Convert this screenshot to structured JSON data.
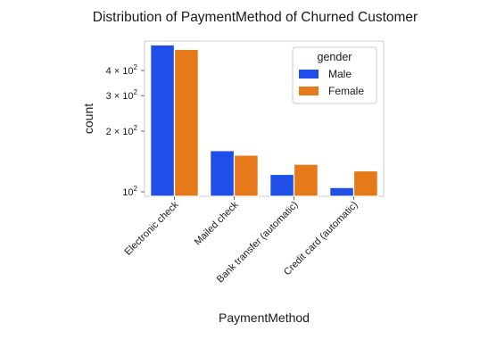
{
  "chart_data": {
    "type": "bar",
    "title": "Distribution of PaymentMethod of Churned Customer",
    "xlabel": "PaymentMethod",
    "ylabel": "count",
    "yscale": "log",
    "ylim": [
      95,
      560
    ],
    "yticks": [
      {
        "value": 100,
        "base": "10",
        "exp": "2"
      },
      {
        "value": 200,
        "base": "2 × 10",
        "exp": "2"
      },
      {
        "value": 300,
        "base": "3 × 10",
        "exp": "2"
      },
      {
        "value": 400,
        "base": "4 × 10",
        "exp": "2"
      }
    ],
    "categories": [
      "Electronic check",
      "Mailed check",
      "Bank transfer (automatic)",
      "Credit card (automatic)"
    ],
    "series": [
      {
        "name": "Male",
        "color": "#1f4fe8",
        "values": [
          536,
          160,
          122,
          105
        ]
      },
      {
        "name": "Female",
        "color": "#e67a1a",
        "values": [
          509,
          152,
          137,
          127
        ]
      }
    ],
    "legend": {
      "title": "gender",
      "position": "top-right"
    },
    "grid": false
  }
}
